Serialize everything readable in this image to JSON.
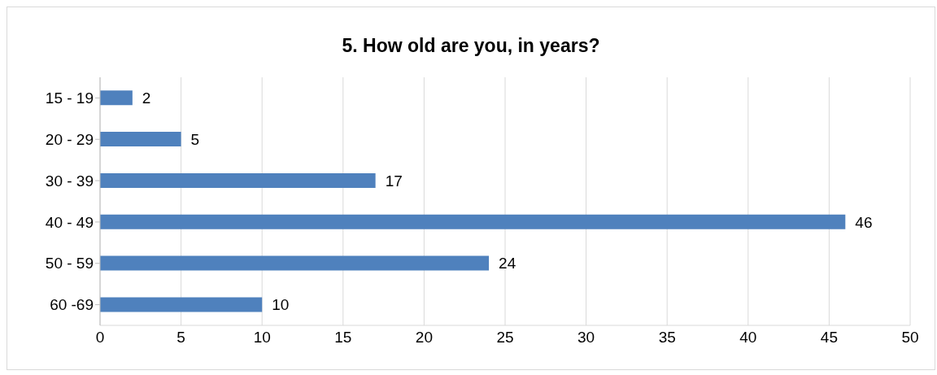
{
  "chart_data": {
    "type": "bar",
    "orientation": "horizontal",
    "title": "5. How old are you, in years?",
    "categories": [
      "15 - 19",
      "20 - 29",
      "30 - 39",
      "40 - 49",
      "50 - 59",
      "60 -69"
    ],
    "values": [
      2,
      5,
      17,
      46,
      24,
      10
    ],
    "color": "#4f81bd",
    "xlim": [
      0,
      50
    ],
    "xticks": [
      0,
      5,
      10,
      15,
      20,
      25,
      30,
      35,
      40,
      45,
      50
    ],
    "grid": "x",
    "data_labels": true
  }
}
